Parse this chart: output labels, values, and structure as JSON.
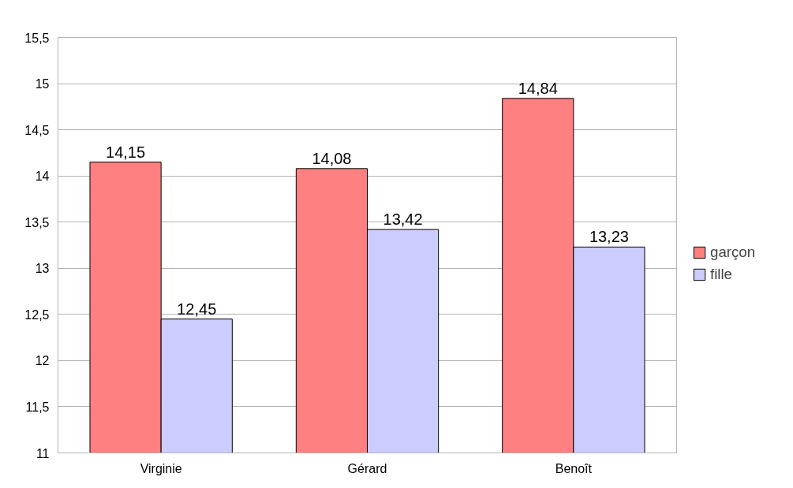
{
  "chart_data": {
    "type": "bar",
    "categories": [
      "Virginie",
      "Gérard",
      "Benoît"
    ],
    "series": [
      {
        "name": "garçon",
        "color": "#ff8080",
        "values": [
          14.15,
          14.08,
          14.84
        ],
        "value_labels": [
          "14,15",
          "14,08",
          "14,84"
        ]
      },
      {
        "name": "fille",
        "color": "#ccccff",
        "values": [
          12.45,
          13.42,
          13.23
        ],
        "value_labels": [
          "12,45",
          "13,42",
          "13,23"
        ]
      }
    ],
    "ylim": [
      11,
      15.5
    ],
    "yticks": [
      11,
      {
        "value": 11.5,
        "label": "11,5"
      },
      12,
      {
        "value": 12.5,
        "label": "12,5"
      },
      13,
      {
        "value": 13.5,
        "label": "13,5"
      },
      14,
      {
        "value": 14.5,
        "label": "14,5"
      },
      15,
      {
        "value": 15.5,
        "label": "15,5"
      }
    ],
    "grid": "y",
    "legend": "right"
  }
}
